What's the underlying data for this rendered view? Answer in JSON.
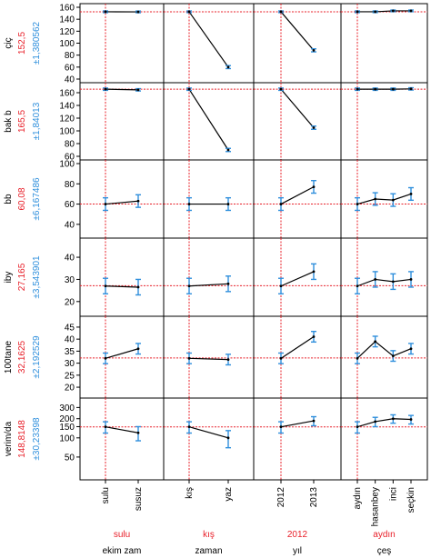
{
  "chart_data": {
    "type": "line",
    "title": "",
    "factors": [
      {
        "name": "ekim zam",
        "levels": [
          "sulu",
          "susuz"
        ],
        "reference_level": "sulu"
      },
      {
        "name": "zaman",
        "levels": [
          "kış",
          "yaz"
        ],
        "reference_level": "kış"
      },
      {
        "name": "yıl",
        "levels": [
          "2012",
          "2013"
        ],
        "reference_level": "2012"
      },
      {
        "name": "çeş",
        "levels": [
          "aydın",
          "hasanbey",
          "inci",
          "seçkin"
        ],
        "reference_level": "aydın"
      }
    ],
    "responses": [
      {
        "name": "çiç",
        "mean_label": "152,5",
        "ci_label": "±1,380562",
        "reference": 152.5,
        "ylim": [
          40,
          160
        ],
        "yticks": [
          40,
          60,
          80,
          100,
          120,
          140,
          160
        ],
        "panels": [
          {
            "means": [
              152.5,
              152.3
            ],
            "ci": [
              1.4,
              1.4
            ]
          },
          {
            "means": [
              152.5,
              60
            ],
            "ci": [
              1.4,
              2.5
            ]
          },
          {
            "means": [
              152.5,
              88
            ],
            "ci": [
              1.4,
              2.5
            ]
          },
          {
            "means": [
              152.5,
              152.5,
              154,
              154
            ],
            "ci": [
              1.4,
              1.4,
              1.4,
              1.4
            ]
          }
        ]
      },
      {
        "name": "bak b",
        "mean_label": "165,5",
        "ci_label": "±1,84013",
        "reference": 165.5,
        "ylim": [
          60,
          170
        ],
        "yticks": [
          60,
          80,
          100,
          120,
          140,
          160
        ],
        "panels": [
          {
            "means": [
              165.5,
              164.5
            ],
            "ci": [
              1.8,
              1.8
            ]
          },
          {
            "means": [
              165.5,
              70
            ],
            "ci": [
              1.8,
              2.5
            ]
          },
          {
            "means": [
              165.5,
              105
            ],
            "ci": [
              1.8,
              2.5
            ]
          },
          {
            "means": [
              165.5,
              165.5,
              165.5,
              166
            ],
            "ci": [
              1.8,
              1.8,
              1.8,
              1.8
            ]
          }
        ]
      },
      {
        "name": "bb",
        "mean_label": "60,08",
        "ci_label": "±6,167486",
        "reference": 60.08,
        "ylim": [
          30,
          100
        ],
        "yticks": [
          40,
          60,
          80,
          100
        ],
        "panels": [
          {
            "means": [
              60,
              63
            ],
            "ci": [
              6.2,
              6.2
            ]
          },
          {
            "means": [
              60,
              60
            ],
            "ci": [
              6.2,
              6.2
            ]
          },
          {
            "means": [
              60,
              77
            ],
            "ci": [
              6.2,
              6.2
            ]
          },
          {
            "means": [
              60,
              65,
              64,
              70
            ],
            "ci": [
              6.2,
              6.2,
              6.2,
              6.2
            ]
          }
        ]
      },
      {
        "name": "iby",
        "mean_label": "27,165",
        "ci_label": "±3,543901",
        "reference": 27.165,
        "ylim": [
          15,
          47
        ],
        "yticks": [
          20,
          30,
          40
        ],
        "panels": [
          {
            "means": [
              27,
              26.5
            ],
            "ci": [
              3.5,
              3.5
            ]
          },
          {
            "means": [
              27,
              28
            ],
            "ci": [
              3.5,
              3.5
            ]
          },
          {
            "means": [
              27,
              33.5
            ],
            "ci": [
              3.5,
              3.5
            ]
          },
          {
            "means": [
              27,
              30,
              29,
              30
            ],
            "ci": [
              3.5,
              3.5,
              3.5,
              3.5
            ]
          }
        ]
      },
      {
        "name": "100tane",
        "mean_label": "32,1625",
        "ci_label": "±2,192529",
        "reference": 32.1625,
        "ylim": [
          17,
          48
        ],
        "yticks": [
          20,
          25,
          30,
          35,
          40,
          45
        ],
        "panels": [
          {
            "means": [
              32,
              36
            ],
            "ci": [
              2.2,
              2.2
            ]
          },
          {
            "means": [
              32,
              31.5
            ],
            "ci": [
              2.2,
              2.2
            ]
          },
          {
            "means": [
              32,
              41
            ],
            "ci": [
              2.2,
              2.2
            ]
          },
          {
            "means": [
              32,
              39,
              33,
              36
            ],
            "ci": [
              2.2,
              2.2,
              2.2,
              2.2
            ]
          }
        ]
      },
      {
        "name": "verim/da",
        "mean_label": "148,8148",
        "ci_label": "±30,23398",
        "reference": 148.8148,
        "ylim": [
          25,
          370
        ],
        "yticks": [
          50,
          100,
          150,
          200,
          300
        ],
        "log_scale": true,
        "panels": [
          {
            "means": [
              149,
              120
            ],
            "ci": [
              30,
              30
            ]
          },
          {
            "means": [
              149,
              100
            ],
            "ci": [
              30,
              30
            ]
          },
          {
            "means": [
              149,
              185
            ],
            "ci": [
              30,
              30
            ]
          },
          {
            "means": [
              149,
              180,
              200,
              195
            ],
            "ci": [
              30,
              30,
              30,
              30
            ]
          }
        ]
      }
    ],
    "colors": {
      "reference_line": "#e8202a",
      "errorbar": "#2f8fdc",
      "line": "#000000",
      "label_mean": "#e8202a",
      "label_ci": "#2f8fdc"
    },
    "grid": false
  }
}
